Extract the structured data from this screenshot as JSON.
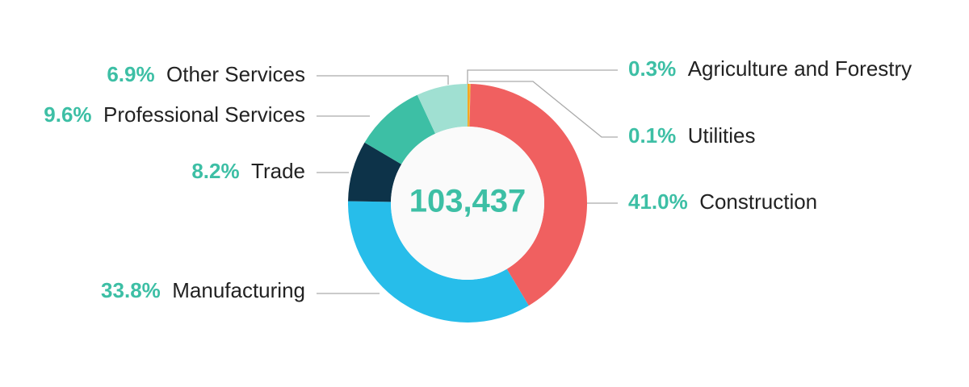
{
  "chart_data": {
    "type": "donut",
    "center_text": "103,437",
    "categories": [
      "Agriculture and Forestry",
      "Utilities",
      "Construction",
      "Manufacturing",
      "Trade",
      "Professional Services",
      "Other Services"
    ],
    "values": [
      0.3,
      0.1,
      41.0,
      33.8,
      8.2,
      9.6,
      6.9
    ],
    "value_labels": [
      "0.3%",
      "0.1%",
      "41.0%",
      "33.8%",
      "8.2%",
      "9.6%",
      "6.9%"
    ],
    "colors": [
      "#f5a623",
      "#e8c53a",
      "#f06060",
      "#27bdea",
      "#0d3349",
      "#3dbfa5",
      "#a0e0d2"
    ]
  }
}
